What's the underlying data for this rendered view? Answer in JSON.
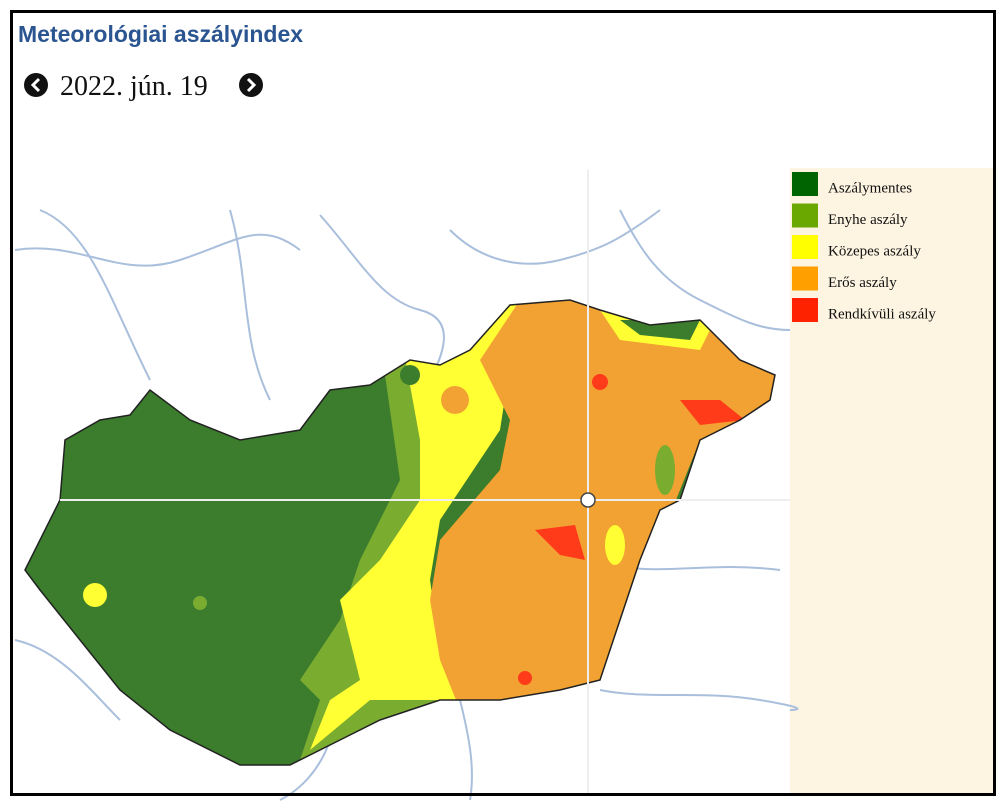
{
  "header": {
    "title": "Meteorológiai aszályindex",
    "date": "2022. jún. 19"
  },
  "legend": [
    {
      "label": "Aszálymentes",
      "color": "#006400"
    },
    {
      "label": "Enyhe aszály",
      "color": "#6aa800"
    },
    {
      "label": "Közepes aszály",
      "color": "#ffff00"
    },
    {
      "label": "Erős aszály",
      "color": "#ffa000"
    },
    {
      "label": "Rendkívüli aszály",
      "color": "#ff2200"
    }
  ]
}
